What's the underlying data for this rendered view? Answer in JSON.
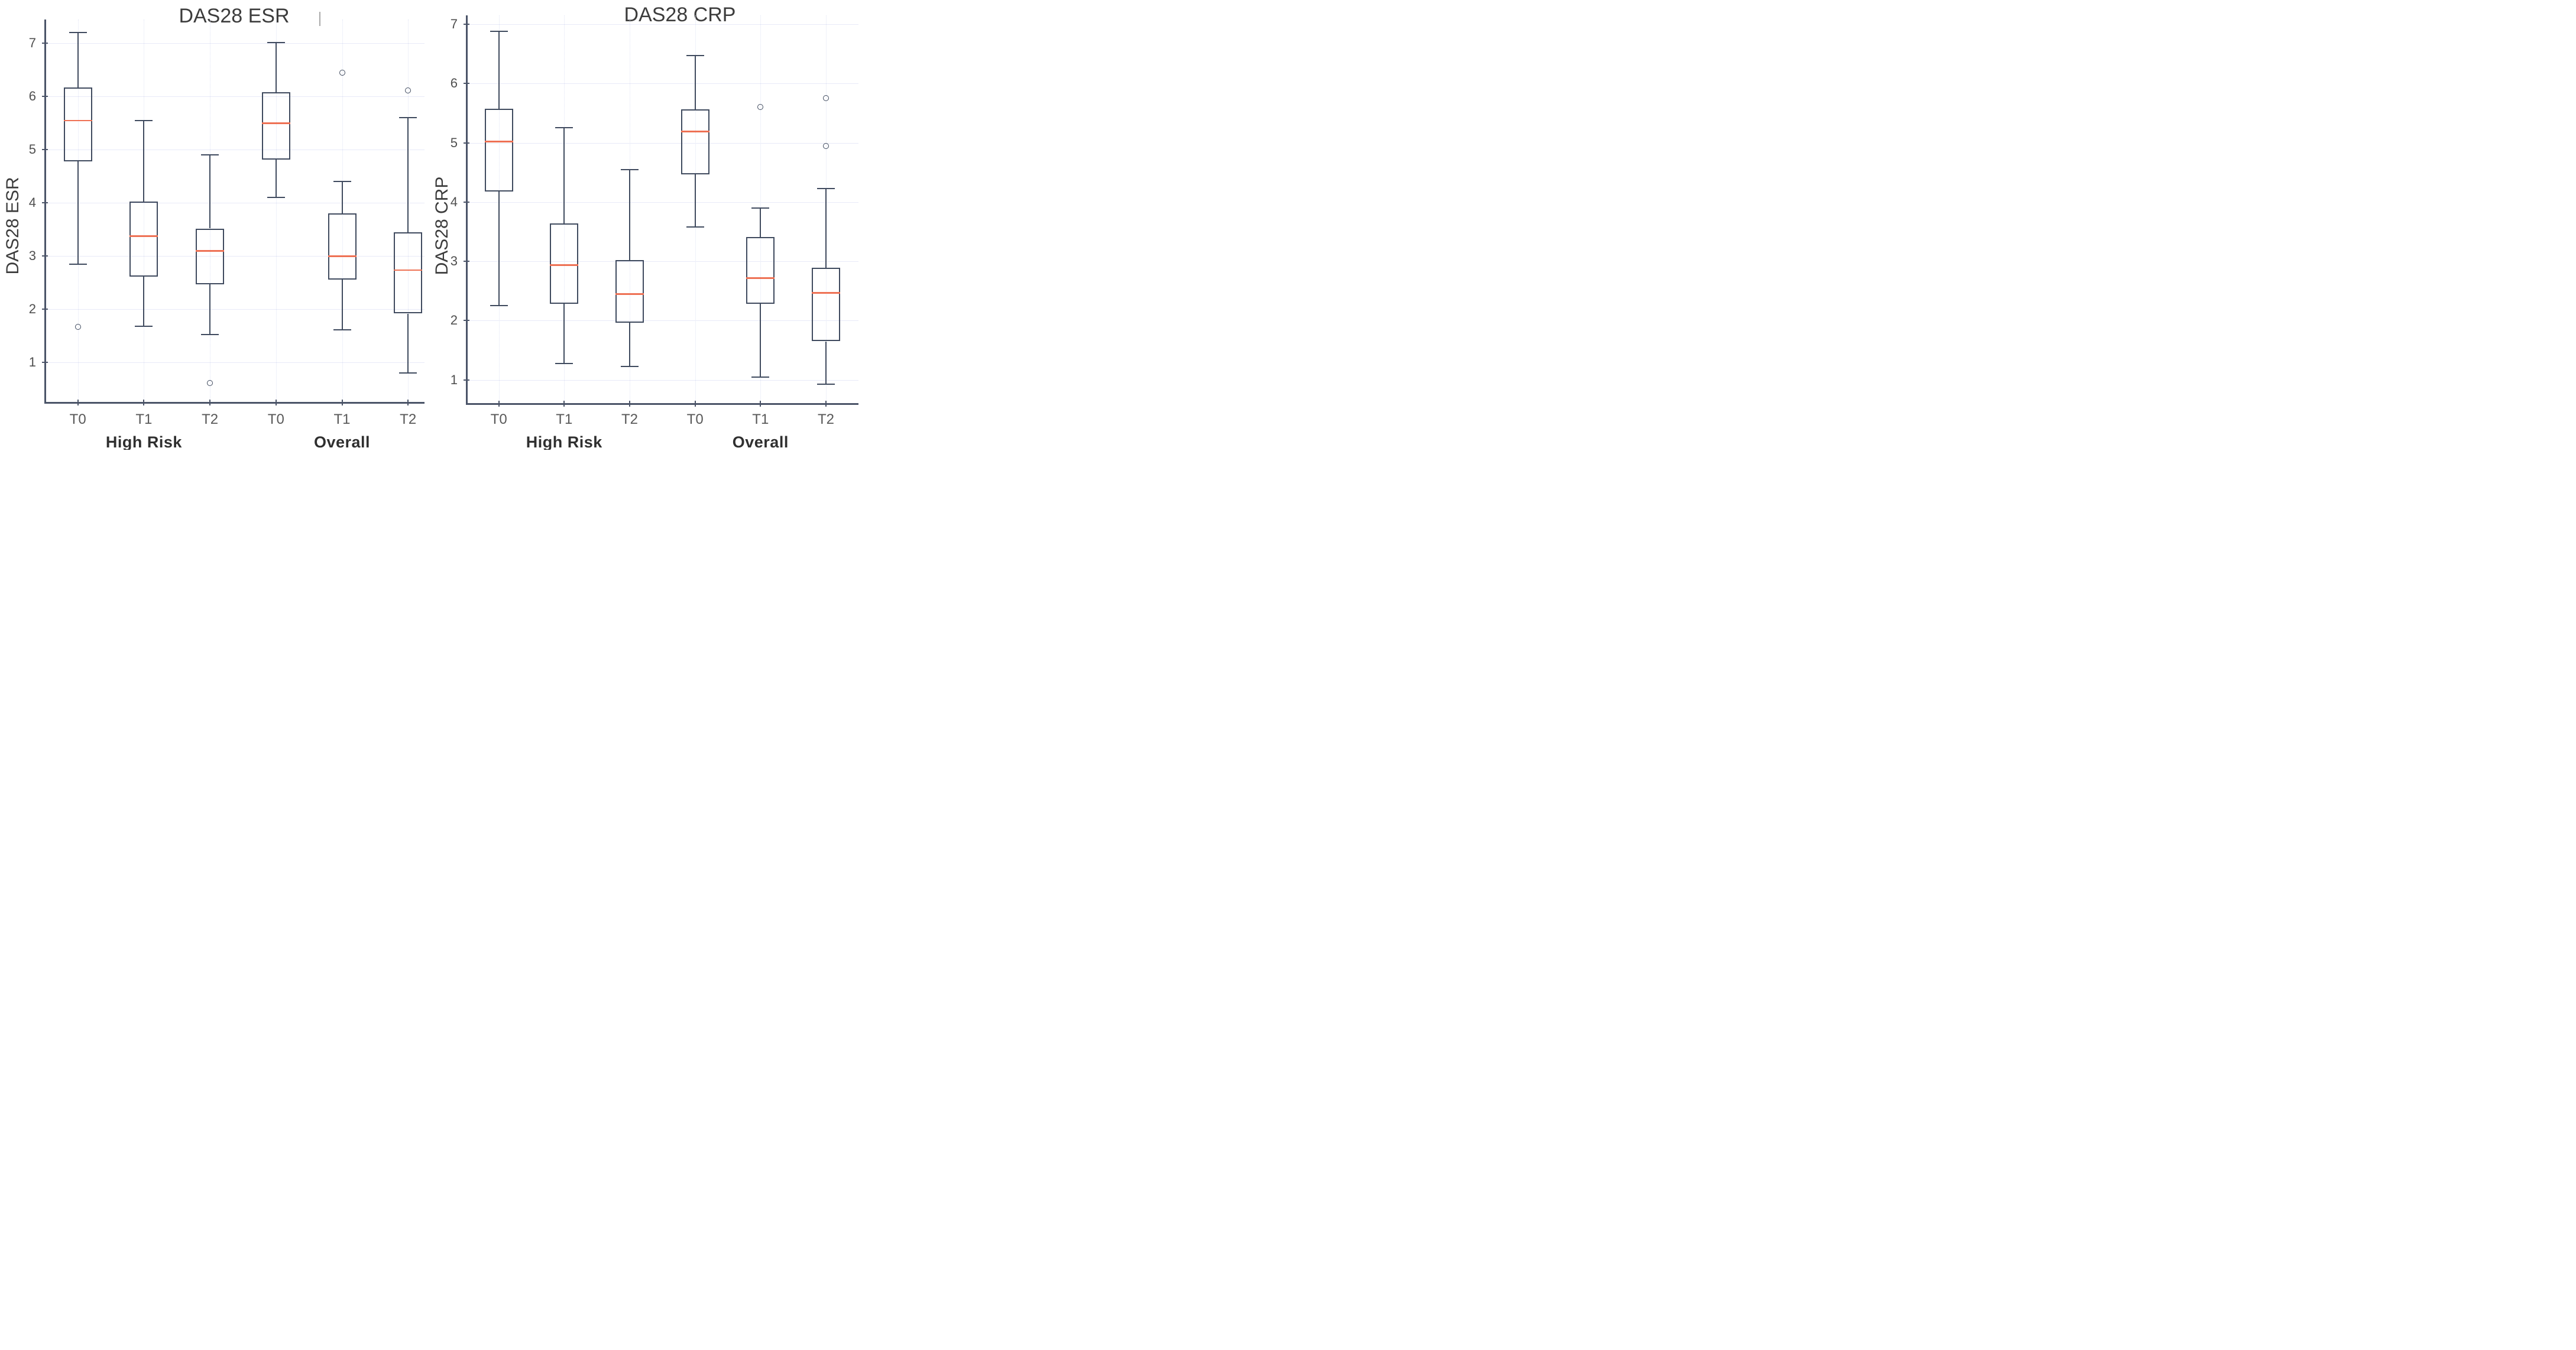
{
  "figure_titles": {
    "left": "DAS28 ESR",
    "right": "DAS28 CRP"
  },
  "colors": {
    "box_stroke": "#3f4a5e",
    "median_line": "#ee7154",
    "gridline": "#e8eaf8",
    "axis_spine": "#4b5468",
    "tick_text": "#4f4f4f",
    "group_label_text": "#2f2f2f",
    "title_text": "#3c3c3c"
  },
  "chart_data": [
    {
      "type": "boxplot",
      "title": "DAS28 ESR",
      "ylabel": "DAS28 ESR",
      "xlabel": "",
      "y_ticks": [
        1,
        2,
        3,
        4,
        5,
        6,
        7
      ],
      "ylim": [
        0.3,
        7.45
      ],
      "grid": true,
      "legend": "none",
      "x_tick_labels": [
        "T0",
        "T1",
        "T2",
        "T0",
        "T1",
        "T2"
      ],
      "group_labels": [
        "High Risk",
        "Overall"
      ],
      "boxes": [
        {
          "group": "High Risk",
          "time": "T0",
          "whisker_low": 2.85,
          "q1": 4.78,
          "median": 5.55,
          "q3": 6.17,
          "whisker_high": 7.2,
          "outliers": [
            1.67
          ]
        },
        {
          "group": "High Risk",
          "time": "T1",
          "whisker_low": 1.68,
          "q1": 2.61,
          "median": 3.38,
          "q3": 4.03,
          "whisker_high": 5.55,
          "outliers": []
        },
        {
          "group": "High Risk",
          "time": "T2",
          "whisker_low": 1.53,
          "q1": 2.47,
          "median": 3.1,
          "q3": 3.52,
          "whisker_high": 4.9,
          "outliers": [
            0.62
          ]
        },
        {
          "group": "Overall",
          "time": "T0",
          "whisker_low": 4.1,
          "q1": 4.81,
          "median": 5.5,
          "q3": 6.08,
          "whisker_high": 7.02,
          "outliers": []
        },
        {
          "group": "Overall",
          "time": "T1",
          "whisker_low": 1.62,
          "q1": 2.56,
          "median": 3.0,
          "q3": 3.8,
          "whisker_high": 4.4,
          "outliers": [
            6.45
          ]
        },
        {
          "group": "Overall",
          "time": "T2",
          "whisker_low": 0.8,
          "q1": 1.92,
          "median": 2.74,
          "q3": 3.45,
          "whisker_high": 5.6,
          "outliers": [
            6.12
          ]
        }
      ]
    },
    {
      "type": "boxplot",
      "title": "DAS28 CRP",
      "ylabel": "DAS28 CRP",
      "xlabel": "",
      "y_ticks": [
        1,
        2,
        3,
        4,
        5,
        6,
        7
      ],
      "ylim": [
        0.55,
        7.15
      ],
      "grid": true,
      "legend": "none",
      "x_tick_labels": [
        "T0",
        "T1",
        "T2",
        "T0",
        "T1",
        "T2"
      ],
      "group_labels": [
        "High Risk",
        "Overall"
      ],
      "boxes": [
        {
          "group": "High Risk",
          "time": "T0",
          "whisker_low": 2.25,
          "q1": 4.18,
          "median": 5.02,
          "q3": 5.57,
          "whisker_high": 6.88,
          "outliers": []
        },
        {
          "group": "High Risk",
          "time": "T1",
          "whisker_low": 1.28,
          "q1": 2.28,
          "median": 2.94,
          "q3": 3.64,
          "whisker_high": 5.25,
          "outliers": []
        },
        {
          "group": "High Risk",
          "time": "T2",
          "whisker_low": 1.23,
          "q1": 1.96,
          "median": 2.45,
          "q3": 3.02,
          "whisker_high": 4.55,
          "outliers": []
        },
        {
          "group": "Overall",
          "time": "T0",
          "whisker_low": 3.58,
          "q1": 4.47,
          "median": 5.19,
          "q3": 5.56,
          "whisker_high": 6.47,
          "outliers": []
        },
        {
          "group": "Overall",
          "time": "T1",
          "whisker_low": 1.05,
          "q1": 2.28,
          "median": 2.72,
          "q3": 3.41,
          "whisker_high": 3.9,
          "outliers": [
            5.6
          ]
        },
        {
          "group": "Overall",
          "time": "T2",
          "whisker_low": 0.93,
          "q1": 1.65,
          "median": 2.47,
          "q3": 2.89,
          "whisker_high": 4.23,
          "outliers": [
            5.75,
            4.95
          ]
        }
      ]
    }
  ]
}
